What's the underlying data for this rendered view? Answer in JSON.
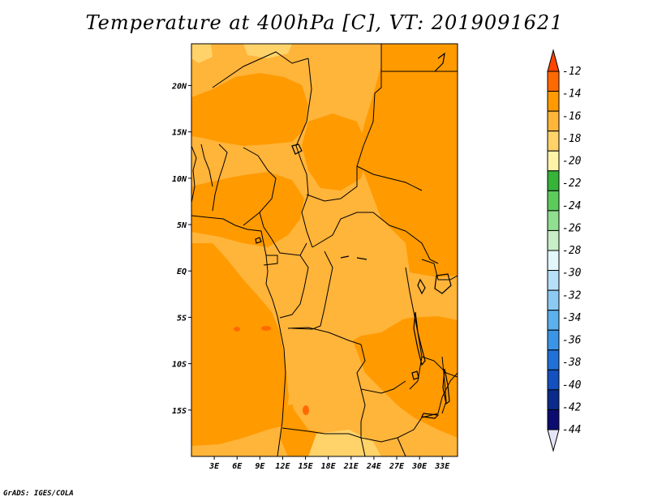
{
  "title": "Temperature at 400hPa [C], VT: 2019091621",
  "credit": "GrADS: IGES/COLA",
  "map": {
    "lon_range": [
      0,
      35
    ],
    "lat_range": [
      -20,
      24.5
    ],
    "lon_ticks": [
      {
        "value": 3,
        "label": "3E"
      },
      {
        "value": 6,
        "label": "6E"
      },
      {
        "value": 9,
        "label": "9E"
      },
      {
        "value": 12,
        "label": "12E"
      },
      {
        "value": 15,
        "label": "15E"
      },
      {
        "value": 18,
        "label": "18E"
      },
      {
        "value": 21,
        "label": "21E"
      },
      {
        "value": 24,
        "label": "24E"
      },
      {
        "value": 27,
        "label": "27E"
      },
      {
        "value": 30,
        "label": "30E"
      },
      {
        "value": 33,
        "label": "33E"
      }
    ],
    "lat_ticks": [
      {
        "value": 20,
        "label": "20N"
      },
      {
        "value": 15,
        "label": "15N"
      },
      {
        "value": 10,
        "label": "10N"
      },
      {
        "value": 5,
        "label": "5N"
      },
      {
        "value": 0,
        "label": "EQ"
      },
      {
        "value": -5,
        "label": "5S"
      },
      {
        "value": -10,
        "label": "10S"
      },
      {
        "value": -15,
        "label": "15S"
      }
    ]
  },
  "colorbar": {
    "labels": [
      "-12",
      "-14",
      "-16",
      "-18",
      "-20",
      "-22",
      "-24",
      "-26",
      "-28",
      "-30",
      "-32",
      "-34",
      "-36",
      "-38",
      "-40",
      "-42",
      "-44"
    ],
    "colors": [
      "#ff4500",
      "#ff6a00",
      "#ff9a00",
      "#ffb43a",
      "#ffd36a",
      "#fff3a8",
      "#37b33a",
      "#5ccb5c",
      "#90de90",
      "#c7eec7",
      "#e3f7fb",
      "#b6e0f7",
      "#8ccaf2",
      "#5cb0ec",
      "#3b94e6",
      "#2070d8",
      "#1450be",
      "#0a2b8a",
      "#0c0c70",
      "#e5e5f8"
    ]
  }
}
